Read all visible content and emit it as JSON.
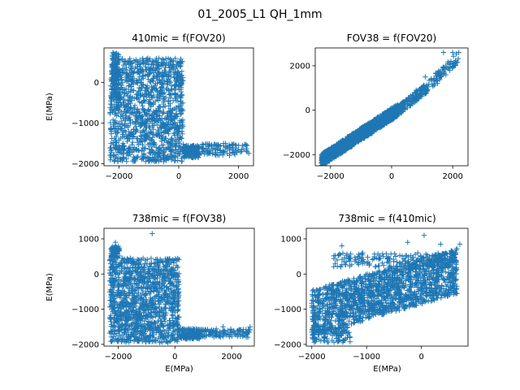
{
  "figure": {
    "suptitle": "01_2005_L1 QH_1mm"
  },
  "style": {
    "marker": "+",
    "marker_color": "#1f77b4",
    "axes_color": "#000000",
    "background": "#ffffff"
  },
  "chart_data": [
    {
      "type": "scatter",
      "title": "410mic = f(FOV20)",
      "xlabel": "",
      "ylabel": "E(MPa)",
      "xlim": [
        -2500,
        2500
      ],
      "ylim": [
        -2050,
        850
      ],
      "xticks": [
        -2000,
        0,
        2000
      ],
      "xtick_labels": [
        "−2000",
        "0",
        "2000"
      ],
      "yticks": [
        -2000,
        -1000,
        0
      ],
      "ytick_labels": [
        "−2000",
        "−1000",
        "0"
      ],
      "clusters": [
        {
          "kind": "box",
          "x": [
            -2300,
            150
          ],
          "y": [
            -1950,
            600
          ],
          "n": 1300
        },
        {
          "kind": "box",
          "x": [
            -2250,
            -2000
          ],
          "y": [
            -500,
            750
          ],
          "n": 120
        },
        {
          "kind": "box",
          "x": [
            150,
            700
          ],
          "y": [
            -1850,
            -1550
          ],
          "n": 150
        },
        {
          "kind": "box",
          "x": [
            700,
            2350
          ],
          "y": [
            -1800,
            -1500
          ],
          "n": 100
        }
      ],
      "outliers": [
        [
          -700,
          500
        ],
        [
          -200,
          450
        ],
        [
          -1300,
          550
        ],
        [
          2100,
          -1650
        ],
        [
          1500,
          -1500
        ]
      ]
    },
    {
      "type": "scatter",
      "title": "FOV38 = f(FOV20)",
      "xlabel": "",
      "ylabel": "",
      "xlim": [
        -2500,
        2500
      ],
      "ylim": [
        -2500,
        2800
      ],
      "xticks": [
        -2000,
        0,
        2000
      ],
      "xtick_labels": [
        "−2000",
        "0",
        "2000"
      ],
      "yticks": [
        -2000,
        0,
        2000
      ],
      "ytick_labels": [
        "−2000",
        "0",
        "2000"
      ],
      "clusters": [
        {
          "kind": "band",
          "x": [
            -2300,
            200
          ],
          "y0": -2250,
          "slope": 0.9,
          "spread": 280,
          "n": 1300
        },
        {
          "kind": "band",
          "x": [
            200,
            1200
          ],
          "y0": -40,
          "slope": 1.1,
          "spread": 220,
          "n": 160
        },
        {
          "kind": "band",
          "x": [
            1200,
            2200
          ],
          "y0": 1100,
          "slope": 1.3,
          "spread": 260,
          "n": 70
        }
      ],
      "outliers": [
        [
          1700,
          2600
        ],
        [
          2000,
          2600
        ],
        [
          2200,
          2600
        ],
        [
          1100,
          1500
        ],
        [
          1500,
          1200
        ],
        [
          800,
          900
        ]
      ]
    },
    {
      "type": "scatter",
      "title": "738mic = f(FOV38)",
      "xlabel": "E(MPa)",
      "ylabel": "E(MPa)",
      "xlim": [
        -2500,
        2800
      ],
      "ylim": [
        -2050,
        1300
      ],
      "xticks": [
        -2000,
        0,
        2000
      ],
      "xtick_labels": [
        "−2000",
        "0",
        "2000"
      ],
      "yticks": [
        -2000,
        -1000,
        0,
        1000
      ],
      "ytick_labels": [
        "−2000",
        "−1000",
        "0",
        "1000"
      ],
      "clusters": [
        {
          "kind": "box",
          "x": [
            -2300,
            150
          ],
          "y": [
            -1950,
            450
          ],
          "n": 1300
        },
        {
          "kind": "box",
          "x": [
            -2250,
            -1950
          ],
          "y": [
            450,
            800
          ],
          "n": 80
        },
        {
          "kind": "box",
          "x": [
            150,
            900
          ],
          "y": [
            -1850,
            -1550
          ],
          "n": 150
        },
        {
          "kind": "box",
          "x": [
            900,
            2650
          ],
          "y": [
            -1800,
            -1550
          ],
          "n": 110
        }
      ],
      "outliers": [
        [
          -800,
          1150
        ],
        [
          -2100,
          900
        ],
        [
          2600,
          -1650
        ],
        [
          2650,
          -1500
        ],
        [
          1700,
          -1500
        ]
      ]
    },
    {
      "type": "scatter",
      "title": "738mic = f(410mic)",
      "xlabel": "E(MPa)",
      "ylabel": "",
      "xlim": [
        -2100,
        850
      ],
      "ylim": [
        -2050,
        1300
      ],
      "xticks": [
        -2000,
        -1000,
        0
      ],
      "xtick_labels": [
        "−2000",
        "−1000",
        "0"
      ],
      "yticks": [
        -2000,
        -1000,
        0,
        1000
      ],
      "ytick_labels": [
        "−2000",
        "−1000",
        "0",
        "1000"
      ],
      "clusters": [
        {
          "kind": "band",
          "x": [
            -2000,
            650
          ],
          "y0": -1100,
          "slope": 0.45,
          "spread": 650,
          "n": 1600
        },
        {
          "kind": "box",
          "x": [
            -1600,
            650
          ],
          "y": [
            200,
            600
          ],
          "n": 200
        },
        {
          "kind": "box",
          "x": [
            -2000,
            -1300
          ],
          "y": [
            -1950,
            -1500
          ],
          "n": 120
        }
      ],
      "outliers": [
        [
          50,
          1100
        ],
        [
          -250,
          900
        ],
        [
          350,
          850
        ],
        [
          700,
          850
        ],
        [
          650,
          -550
        ],
        [
          -1450,
          800
        ]
      ]
    }
  ]
}
